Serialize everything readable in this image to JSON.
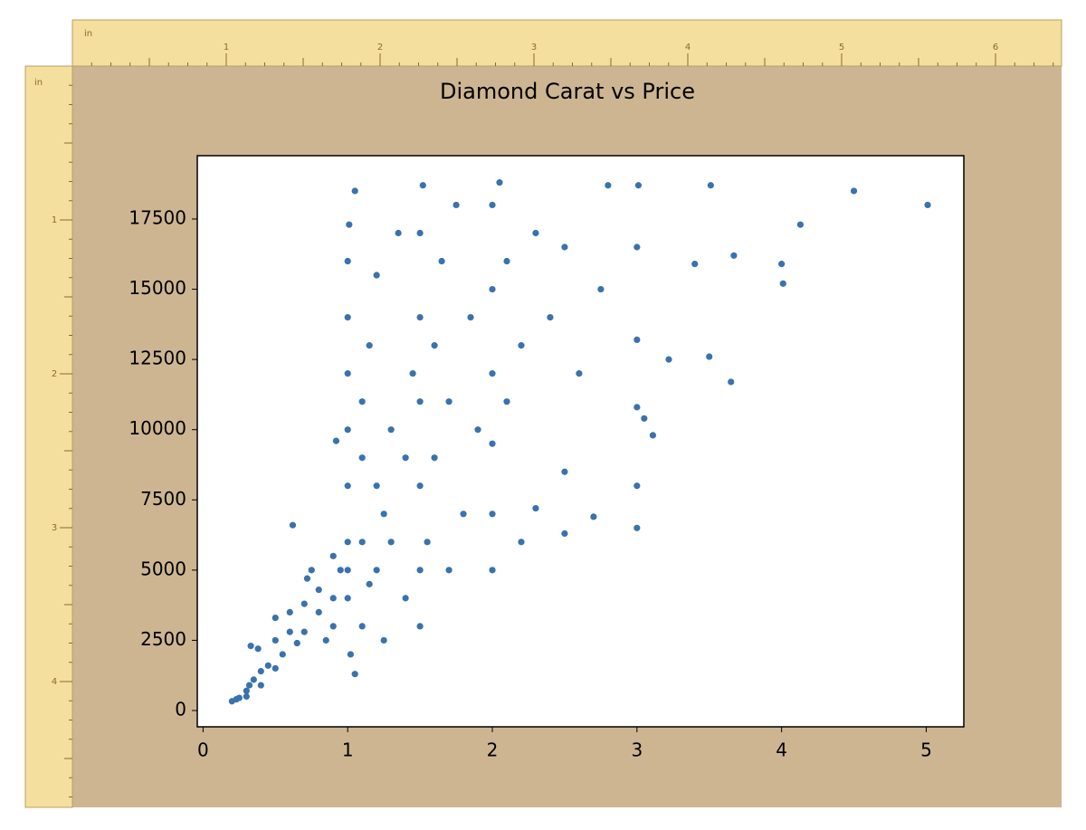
{
  "rulers": {
    "unit": "in",
    "top": [
      1,
      2,
      3,
      4,
      5,
      6
    ],
    "left": [
      1,
      2,
      3,
      4
    ]
  },
  "chart_data": {
    "type": "scatter",
    "title": "Diamond Carat vs Price",
    "color": "#3a72ad",
    "xlim": [
      -0.04,
      5.26
    ],
    "ylim": [
      -580,
      19755
    ],
    "xticks": [
      0,
      1,
      2,
      3,
      4,
      5
    ],
    "yticks": [
      0,
      2500,
      5000,
      7500,
      10000,
      12500,
      15000,
      17500
    ],
    "x": [
      0.2,
      0.23,
      0.25,
      0.3,
      0.3,
      0.32,
      0.35,
      0.4,
      0.4,
      0.33,
      0.38,
      0.45,
      0.5,
      0.5,
      0.5,
      0.55,
      0.6,
      0.6,
      0.62,
      0.65,
      0.7,
      0.7,
      0.72,
      0.75,
      0.8,
      0.8,
      0.85,
      0.9,
      0.9,
      0.9,
      0.92,
      0.95,
      1.0,
      1.0,
      1.0,
      1.0,
      1.0,
      1.0,
      1.0,
      1.0,
      1.01,
      1.02,
      1.05,
      1.05,
      1.1,
      1.1,
      1.1,
      1.1,
      1.15,
      1.15,
      1.2,
      1.2,
      1.2,
      1.25,
      1.25,
      1.3,
      1.3,
      1.35,
      1.4,
      1.4,
      1.45,
      1.5,
      1.5,
      1.5,
      1.5,
      1.5,
      1.5,
      1.52,
      1.55,
      1.6,
      1.6,
      1.65,
      1.7,
      1.7,
      1.75,
      1.8,
      1.85,
      1.9,
      2.0,
      2.0,
      2.0,
      2.0,
      2.0,
      2.0,
      2.05,
      2.1,
      2.1,
      2.2,
      2.2,
      2.3,
      2.3,
      2.4,
      2.5,
      2.5,
      2.5,
      2.6,
      2.7,
      2.75,
      2.8,
      3.0,
      3.0,
      3.0,
      3.0,
      3.0,
      3.01,
      3.05,
      3.11,
      3.22,
      3.4,
      3.5,
      3.51,
      3.65,
      3.67,
      4.0,
      4.01,
      4.13,
      4.5,
      5.01
    ],
    "values": [
      330,
      400,
      450,
      500,
      700,
      900,
      1100,
      900,
      1400,
      2300,
      2200,
      1600,
      1500,
      2500,
      3300,
      2000,
      2800,
      3500,
      6600,
      2400,
      2800,
      3800,
      4700,
      5000,
      3500,
      4300,
      2500,
      3000,
      4000,
      5500,
      9600,
      5000,
      4000,
      5000,
      6000,
      8000,
      10000,
      12000,
      14000,
      16000,
      17300,
      2000,
      1300,
      18500,
      3000,
      6000,
      9000,
      11000,
      4500,
      13000,
      5000,
      8000,
      15500,
      2500,
      7000,
      6000,
      10000,
      17000,
      4000,
      9000,
      12000,
      3000,
      5000,
      8000,
      11000,
      14000,
      17000,
      18700,
      6000,
      9000,
      13000,
      16000,
      5000,
      11000,
      18000,
      7000,
      14000,
      10000,
      5000,
      7000,
      9500,
      12000,
      15000,
      18000,
      18800,
      11000,
      16000,
      13000,
      6000,
      17000,
      7200,
      14000,
      6300,
      8500,
      16500,
      12000,
      6900,
      15000,
      18700,
      6500,
      8000,
      10800,
      13200,
      16500,
      18700,
      10400,
      9800,
      12500,
      15900,
      12600,
      18700,
      11700,
      16200,
      15900,
      15200,
      17300,
      18500,
      18000
    ]
  }
}
